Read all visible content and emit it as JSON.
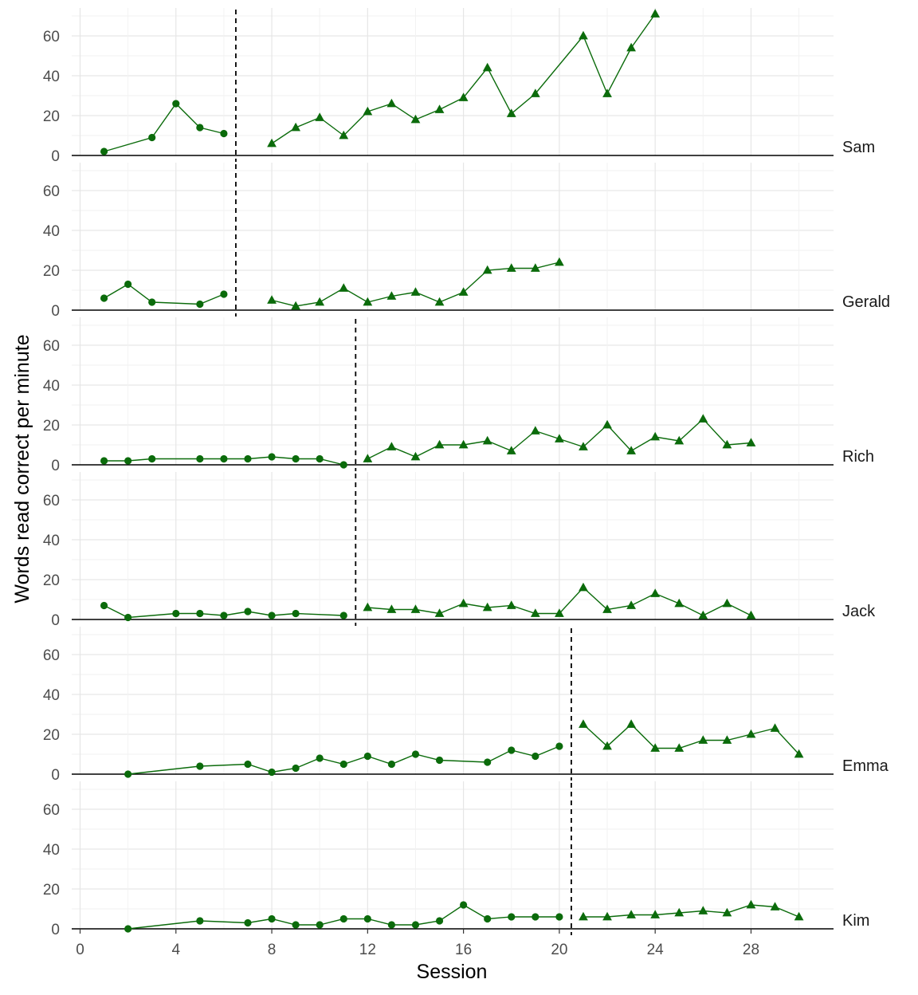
{
  "chart_data": {
    "type": "line",
    "xlabel": "Session",
    "ylabel": "Words read correct per minute",
    "xlim": [
      -0.2,
      31.5
    ],
    "ylim": [
      0,
      74
    ],
    "x_ticks": [
      0,
      4,
      8,
      12,
      16,
      20,
      24,
      28
    ],
    "y_ticks": [
      0,
      20,
      40,
      60
    ],
    "grid": true,
    "line_color": "#0b6b0b",
    "baseline_marker": "circle",
    "intervention_marker": "triangle",
    "panels": [
      {
        "name": "Sam",
        "phase_change": 6.5,
        "baseline": {
          "x": [
            1,
            3,
            4,
            5,
            6
          ],
          "y": [
            2,
            9,
            26,
            14,
            11
          ]
        },
        "intervention": {
          "x": [
            8,
            9,
            10,
            11,
            12,
            13,
            14,
            15,
            16,
            17,
            18,
            19,
            21,
            22,
            23,
            24
          ],
          "y": [
            6,
            14,
            19,
            10,
            22,
            26,
            18,
            23,
            29,
            44,
            21,
            31,
            60,
            31,
            54,
            71
          ]
        }
      },
      {
        "name": "Gerald",
        "phase_change": 6.5,
        "baseline": {
          "x": [
            1,
            2,
            3,
            5,
            6
          ],
          "y": [
            6,
            13,
            4,
            3,
            8
          ]
        },
        "intervention": {
          "x": [
            8,
            9,
            10,
            11,
            12,
            13,
            14,
            15,
            16,
            17,
            18,
            19,
            20
          ],
          "y": [
            5,
            2,
            4,
            11,
            4,
            7,
            9,
            4,
            9,
            20,
            21,
            21,
            24
          ]
        }
      },
      {
        "name": "Rich",
        "phase_change": 11.5,
        "baseline": {
          "x": [
            1,
            2,
            3,
            5,
            6,
            7,
            8,
            9,
            10,
            11
          ],
          "y": [
            2,
            2,
            3,
            3,
            3,
            3,
            4,
            3,
            3,
            0
          ]
        },
        "intervention": {
          "x": [
            12,
            13,
            14,
            15,
            16,
            17,
            18,
            19,
            20,
            21,
            22,
            23,
            24,
            25,
            26,
            27,
            28
          ],
          "y": [
            3,
            9,
            4,
            10,
            10,
            12,
            7,
            17,
            13,
            9,
            20,
            7,
            14,
            12,
            23,
            10,
            11
          ]
        }
      },
      {
        "name": "Jack",
        "phase_change": 11.5,
        "baseline": {
          "x": [
            1,
            2,
            4,
            5,
            6,
            7,
            8,
            9,
            11
          ],
          "y": [
            7,
            1,
            3,
            3,
            2,
            4,
            2,
            3,
            2
          ]
        },
        "intervention": {
          "x": [
            12,
            13,
            14,
            15,
            16,
            17,
            18,
            19,
            20,
            21,
            22,
            23,
            24,
            25,
            26,
            27,
            28
          ],
          "y": [
            6,
            5,
            5,
            3,
            8,
            6,
            7,
            3,
            3,
            16,
            5,
            7,
            13,
            8,
            2,
            8,
            2
          ]
        }
      },
      {
        "name": "Emma",
        "phase_change": 20.5,
        "baseline": {
          "x": [
            2,
            5,
            7,
            8,
            9,
            10,
            11,
            12,
            13,
            14,
            15,
            17,
            18,
            19,
            20
          ],
          "y": [
            0,
            4,
            5,
            1,
            3,
            8,
            5,
            9,
            5,
            10,
            7,
            6,
            12,
            9,
            14
          ]
        },
        "intervention": {
          "x": [
            21,
            22,
            23,
            24,
            25,
            26,
            27,
            28,
            29,
            30
          ],
          "y": [
            25,
            14,
            25,
            13,
            13,
            17,
            17,
            20,
            23,
            10
          ]
        }
      },
      {
        "name": "Kim",
        "phase_change": 20.5,
        "baseline": {
          "x": [
            2,
            5,
            7,
            8,
            9,
            10,
            11,
            12,
            13,
            14,
            15,
            16,
            17,
            18,
            19,
            20
          ],
          "y": [
            0,
            4,
            3,
            5,
            2,
            2,
            5,
            5,
            2,
            2,
            4,
            12,
            5,
            6,
            6,
            6
          ]
        },
        "intervention": {
          "x": [
            21,
            22,
            23,
            24,
            25,
            26,
            27,
            28,
            29,
            30
          ],
          "y": [
            6,
            6,
            7,
            7,
            8,
            9,
            8,
            12,
            11,
            6
          ]
        }
      }
    ]
  }
}
